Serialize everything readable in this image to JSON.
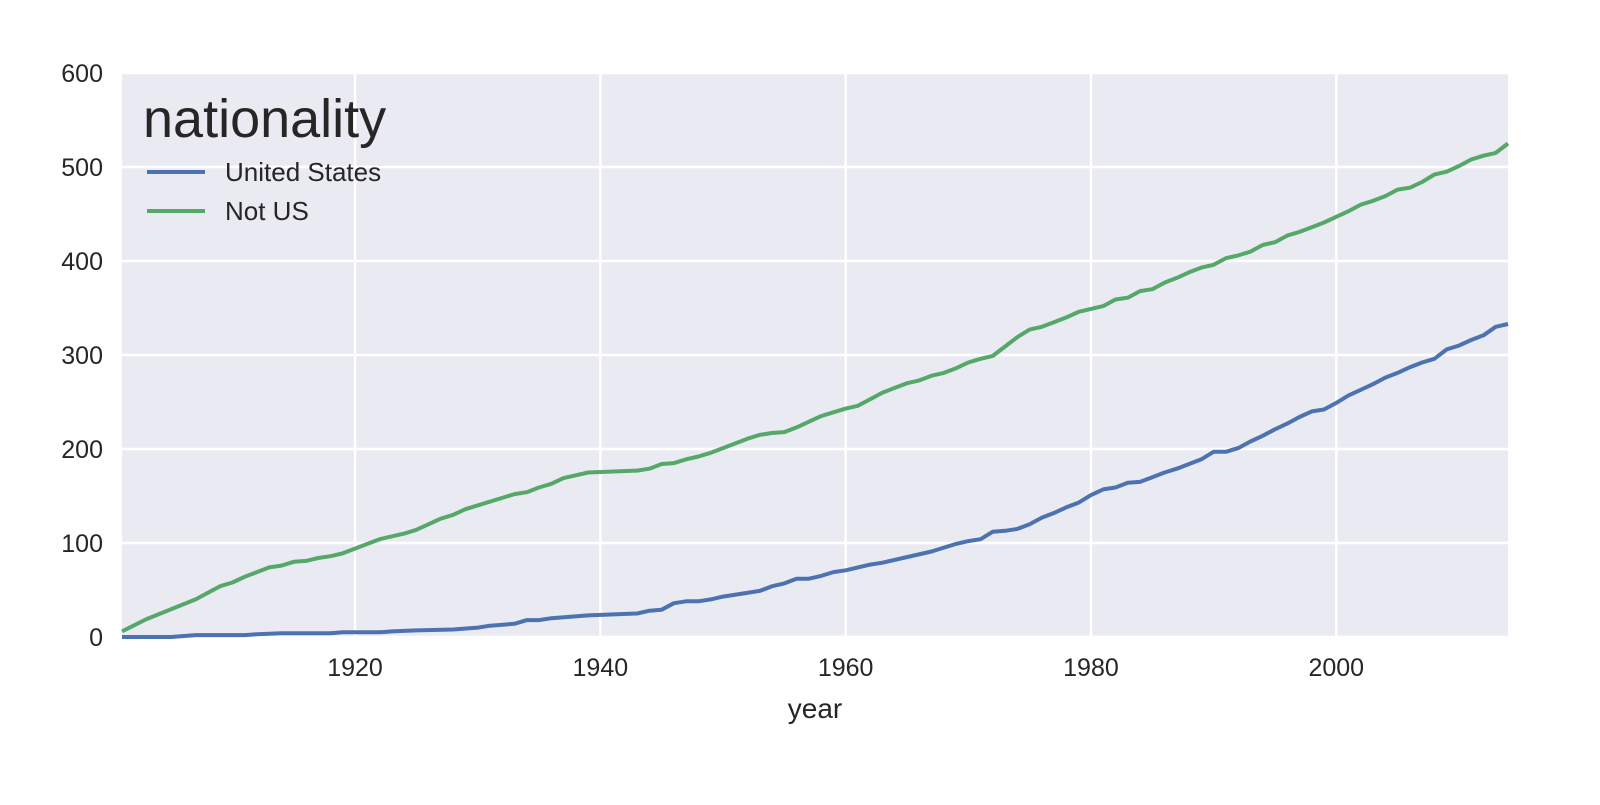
{
  "chart_data": {
    "type": "line",
    "title": "",
    "xlabel": "year",
    "ylabel": "",
    "xlim": [
      1901,
      2014
    ],
    "ylim": [
      0,
      600
    ],
    "xticks": [
      1920,
      1940,
      1960,
      1980,
      2000
    ],
    "yticks": [
      0,
      100,
      200,
      300,
      400,
      500,
      600
    ],
    "grid": true,
    "legend": {
      "title": "nationality",
      "placement": "top-left"
    },
    "series": [
      {
        "name": "United States",
        "color": "#4c72b0",
        "points": [
          [
            1901,
            0
          ],
          [
            1905,
            0
          ],
          [
            1907,
            2
          ],
          [
            1911,
            2
          ],
          [
            1912,
            3
          ],
          [
            1914,
            4
          ],
          [
            1918,
            4
          ],
          [
            1919,
            5
          ],
          [
            1922,
            5
          ],
          [
            1923,
            6
          ],
          [
            1925,
            7
          ],
          [
            1928,
            8
          ],
          [
            1930,
            10
          ],
          [
            1931,
            12
          ],
          [
            1933,
            14
          ],
          [
            1934,
            18
          ],
          [
            1935,
            18
          ],
          [
            1936,
            20
          ],
          [
            1939,
            23
          ],
          [
            1943,
            25
          ],
          [
            1944,
            28
          ],
          [
            1945,
            29
          ],
          [
            1946,
            36
          ],
          [
            1947,
            38
          ],
          [
            1948,
            38
          ],
          [
            1949,
            40
          ],
          [
            1950,
            43
          ],
          [
            1953,
            49
          ],
          [
            1954,
            54
          ],
          [
            1955,
            57
          ],
          [
            1956,
            62
          ],
          [
            1957,
            62
          ],
          [
            1958,
            65
          ],
          [
            1959,
            69
          ],
          [
            1960,
            71
          ],
          [
            1962,
            77
          ],
          [
            1963,
            79
          ],
          [
            1967,
            91
          ],
          [
            1969,
            99
          ],
          [
            1970,
            102
          ],
          [
            1971,
            104
          ],
          [
            1972,
            112
          ],
          [
            1973,
            113
          ],
          [
            1974,
            115
          ],
          [
            1975,
            120
          ],
          [
            1976,
            127
          ],
          [
            1977,
            132
          ],
          [
            1978,
            138
          ],
          [
            1979,
            143
          ],
          [
            1980,
            151
          ],
          [
            1981,
            157
          ],
          [
            1982,
            159
          ],
          [
            1983,
            164
          ],
          [
            1984,
            165
          ],
          [
            1985,
            170
          ],
          [
            1986,
            175
          ],
          [
            1987,
            179
          ],
          [
            1988,
            184
          ],
          [
            1989,
            189
          ],
          [
            1990,
            197
          ],
          [
            1991,
            197
          ],
          [
            1992,
            201
          ],
          [
            1993,
            208
          ],
          [
            1994,
            214
          ],
          [
            1995,
            221
          ],
          [
            1996,
            227
          ],
          [
            1997,
            234
          ],
          [
            1998,
            240
          ],
          [
            1999,
            242
          ],
          [
            2000,
            249
          ],
          [
            2001,
            257
          ],
          [
            2002,
            263
          ],
          [
            2003,
            269
          ],
          [
            2004,
            276
          ],
          [
            2005,
            281
          ],
          [
            2006,
            287
          ],
          [
            2007,
            292
          ],
          [
            2008,
            296
          ],
          [
            2009,
            306
          ],
          [
            2010,
            310
          ],
          [
            2011,
            316
          ],
          [
            2012,
            321
          ],
          [
            2013,
            330
          ],
          [
            2014,
            333
          ]
        ]
      },
      {
        "name": "Not US",
        "color": "#55a868",
        "points": [
          [
            1901,
            6
          ],
          [
            1903,
            19
          ],
          [
            1907,
            40
          ],
          [
            1909,
            54
          ],
          [
            1910,
            58
          ],
          [
            1911,
            64
          ],
          [
            1913,
            74
          ],
          [
            1914,
            76
          ],
          [
            1915,
            80
          ],
          [
            1916,
            81
          ],
          [
            1917,
            84
          ],
          [
            1918,
            86
          ],
          [
            1919,
            89
          ],
          [
            1922,
            104
          ],
          [
            1924,
            110
          ],
          [
            1925,
            114
          ],
          [
            1926,
            120
          ],
          [
            1927,
            126
          ],
          [
            1928,
            130
          ],
          [
            1929,
            136
          ],
          [
            1932,
            148
          ],
          [
            1933,
            152
          ],
          [
            1934,
            154
          ],
          [
            1935,
            159
          ],
          [
            1936,
            163
          ],
          [
            1937,
            169
          ],
          [
            1938,
            172
          ],
          [
            1939,
            175
          ],
          [
            1943,
            177
          ],
          [
            1944,
            179
          ],
          [
            1945,
            184
          ],
          [
            1946,
            185
          ],
          [
            1947,
            189
          ],
          [
            1948,
            192
          ],
          [
            1949,
            196
          ],
          [
            1950,
            201
          ],
          [
            1952,
            211
          ],
          [
            1953,
            215
          ],
          [
            1954,
            217
          ],
          [
            1955,
            218
          ],
          [
            1956,
            223
          ],
          [
            1957,
            229
          ],
          [
            1958,
            235
          ],
          [
            1959,
            239
          ],
          [
            1960,
            243
          ],
          [
            1961,
            246
          ],
          [
            1962,
            253
          ],
          [
            1963,
            260
          ],
          [
            1964,
            265
          ],
          [
            1965,
            270
          ],
          [
            1966,
            273
          ],
          [
            1967,
            278
          ],
          [
            1968,
            281
          ],
          [
            1969,
            286
          ],
          [
            1970,
            292
          ],
          [
            1971,
            296
          ],
          [
            1972,
            299
          ],
          [
            1973,
            309
          ],
          [
            1974,
            319
          ],
          [
            1975,
            327
          ],
          [
            1976,
            330
          ],
          [
            1977,
            335
          ],
          [
            1978,
            340
          ],
          [
            1979,
            346
          ],
          [
            1980,
            349
          ],
          [
            1981,
            352
          ],
          [
            1982,
            359
          ],
          [
            1983,
            361
          ],
          [
            1984,
            368
          ],
          [
            1985,
            370
          ],
          [
            1986,
            377
          ],
          [
            1987,
            382
          ],
          [
            1988,
            388
          ],
          [
            1989,
            393
          ],
          [
            1990,
            396
          ],
          [
            1991,
            403
          ],
          [
            1992,
            406
          ],
          [
            1993,
            410
          ],
          [
            1994,
            417
          ],
          [
            1995,
            420
          ],
          [
            1996,
            427
          ],
          [
            1997,
            431
          ],
          [
            1998,
            436
          ],
          [
            1999,
            441
          ],
          [
            2000,
            447
          ],
          [
            2001,
            453
          ],
          [
            2002,
            460
          ],
          [
            2003,
            464
          ],
          [
            2004,
            469
          ],
          [
            2005,
            476
          ],
          [
            2006,
            478
          ],
          [
            2007,
            484
          ],
          [
            2008,
            492
          ],
          [
            2009,
            495
          ],
          [
            2010,
            501
          ],
          [
            2011,
            508
          ],
          [
            2012,
            512
          ],
          [
            2013,
            515
          ],
          [
            2014,
            525
          ]
        ]
      }
    ]
  }
}
